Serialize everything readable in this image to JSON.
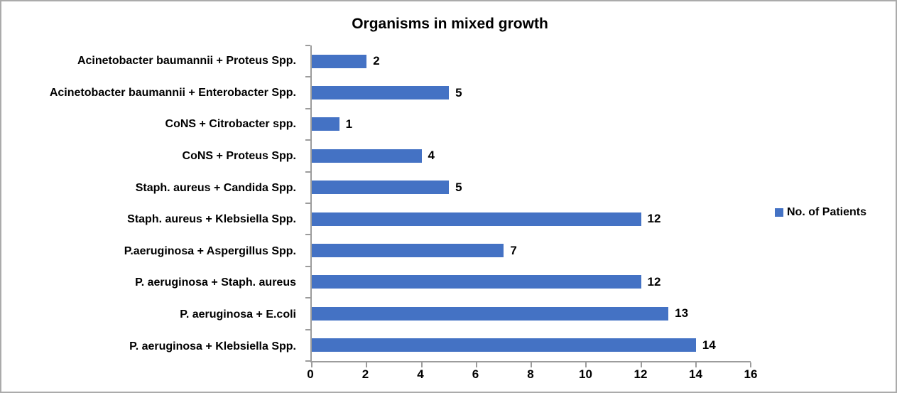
{
  "chart_data": {
    "type": "bar",
    "orientation": "horizontal",
    "title": "Organisms in mixed growth",
    "categories": [
      "Acinetobacter baumannii + Proteus Spp.",
      "Acinetobacter baumannii + Enterobacter Spp.",
      "CoNS + Citrobacter spp.",
      "CoNS + Proteus Spp.",
      "Staph. aureus + Candida Spp.",
      "Staph. aureus + Klebsiella Spp.",
      "P.aeruginosa + Aspergillus Spp.",
      "P. aeruginosa + Staph. aureus",
      "P. aeruginosa + E.coli",
      "P. aeruginosa + Klebsiella Spp."
    ],
    "values": [
      2,
      5,
      1,
      4,
      5,
      12,
      7,
      12,
      13,
      14
    ],
    "series_name": "No. of Patients",
    "xlim": [
      0,
      16
    ],
    "x_ticks": [
      0,
      2,
      4,
      6,
      8,
      10,
      12,
      14,
      16
    ],
    "data_labels_shown": true,
    "grid": "off",
    "legend_position": "right",
    "bar_color": "#4472C4",
    "axis_color": "#9c9c9c",
    "title_color": "#000000",
    "label_color": "#000000"
  }
}
